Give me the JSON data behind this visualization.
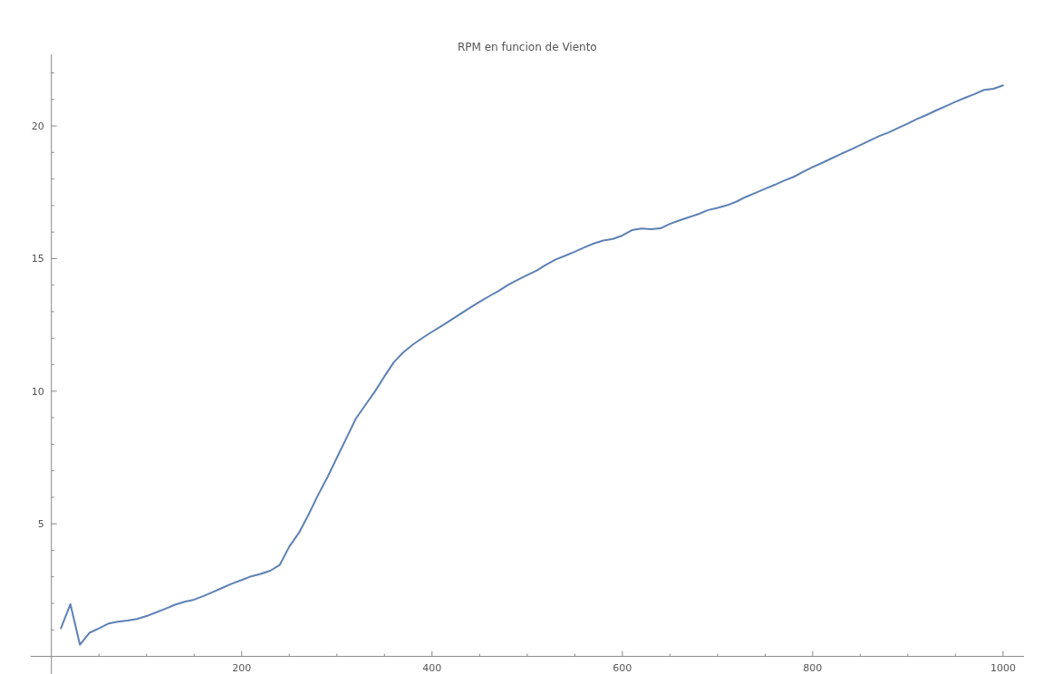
{
  "chart_data": {
    "type": "line",
    "title": "RPM en funcion de Viento",
    "x": [
      10,
      20,
      30,
      40,
      50,
      60,
      70,
      80,
      90,
      100,
      110,
      120,
      130,
      140,
      150,
      160,
      170,
      180,
      190,
      200,
      210,
      220,
      230,
      240,
      250,
      260,
      270,
      280,
      290,
      300,
      310,
      320,
      330,
      340,
      350,
      360,
      370,
      380,
      390,
      400,
      410,
      420,
      430,
      440,
      450,
      460,
      470,
      480,
      490,
      500,
      510,
      520,
      530,
      540,
      550,
      560,
      570,
      580,
      590,
      600,
      610,
      620,
      630,
      640,
      650,
      660,
      670,
      680,
      690,
      700,
      710,
      720,
      730,
      740,
      750,
      760,
      770,
      780,
      790,
      800,
      810,
      820,
      830,
      840,
      850,
      860,
      870,
      880,
      890,
      900,
      910,
      920,
      930,
      940,
      950,
      960,
      970,
      980,
      990,
      1000
    ],
    "series": [
      {
        "color": "#5e81b5",
        "values": [
          1.06,
          1.97,
          0.44,
          0.89,
          1.06,
          1.24,
          1.31,
          1.35,
          1.41,
          1.52,
          1.66,
          1.8,
          1.95,
          2.06,
          2.14,
          2.28,
          2.43,
          2.59,
          2.75,
          2.88,
          3.02,
          3.11,
          3.23,
          3.45,
          4.14,
          4.65,
          5.33,
          6.07,
          6.75,
          7.49,
          8.23,
          8.97,
          9.48,
          9.99,
          10.56,
          11.1,
          11.47,
          11.76,
          12.01,
          12.24,
          12.46,
          12.69,
          12.92,
          13.15,
          13.37,
          13.58,
          13.78,
          14.01,
          14.2,
          14.38,
          14.55,
          14.77,
          14.97,
          15.11,
          15.26,
          15.42,
          15.57,
          15.68,
          15.74,
          15.87,
          16.07,
          16.13,
          16.11,
          16.14,
          16.31,
          16.44,
          16.56,
          16.68,
          16.83,
          16.91,
          17.01,
          17.15,
          17.33,
          17.48,
          17.63,
          17.78,
          17.94,
          18.08,
          18.27,
          18.45,
          18.61,
          18.78,
          18.95,
          19.11,
          19.28,
          19.45,
          19.62,
          19.76,
          19.93,
          20.09,
          20.27,
          20.42,
          20.59,
          20.75,
          20.91,
          21.06,
          21.2,
          21.36,
          21.4,
          21.53
        ]
      }
    ],
    "xlim": [
      -22,
      1022
    ],
    "ylim": [
      -0.8,
      22.7
    ],
    "xticks": [
      {
        "value": 50,
        "label": null
      },
      {
        "value": 100,
        "label": null
      },
      {
        "value": 150,
        "label": null
      },
      200,
      {
        "value": 250,
        "label": null
      },
      {
        "value": 300,
        "label": null
      },
      {
        "value": 350,
        "label": null
      },
      400,
      {
        "value": 450,
        "label": null
      },
      {
        "value": 500,
        "label": null
      },
      {
        "value": 550,
        "label": null
      },
      600,
      {
        "value": 650,
        "label": null
      },
      {
        "value": 700,
        "label": null
      },
      {
        "value": 750,
        "label": null
      },
      800,
      {
        "value": 850,
        "label": null
      },
      {
        "value": 900,
        "label": null
      },
      {
        "value": 950,
        "label": null
      },
      1000
    ],
    "yticks": [
      {
        "value": 1,
        "label": null
      },
      {
        "value": 2,
        "label": null
      },
      {
        "value": 3,
        "label": null
      },
      {
        "value": 4,
        "label": null
      },
      5,
      {
        "value": 6,
        "label": null
      },
      {
        "value": 7,
        "label": null
      },
      {
        "value": 8,
        "label": null
      },
      {
        "value": 9,
        "label": null
      },
      10,
      {
        "value": 11,
        "label": null
      },
      {
        "value": 12,
        "label": null
      },
      {
        "value": 13,
        "label": null
      },
      {
        "value": 14,
        "label": null
      },
      15,
      {
        "value": 16,
        "label": null
      },
      {
        "value": 17,
        "label": null
      },
      {
        "value": 18,
        "label": null
      },
      {
        "value": 19,
        "label": null
      },
      20,
      {
        "value": 21,
        "label": null
      },
      {
        "value": 22,
        "label": null
      }
    ],
    "grid": false,
    "marker": "none",
    "line_style": "solid"
  }
}
